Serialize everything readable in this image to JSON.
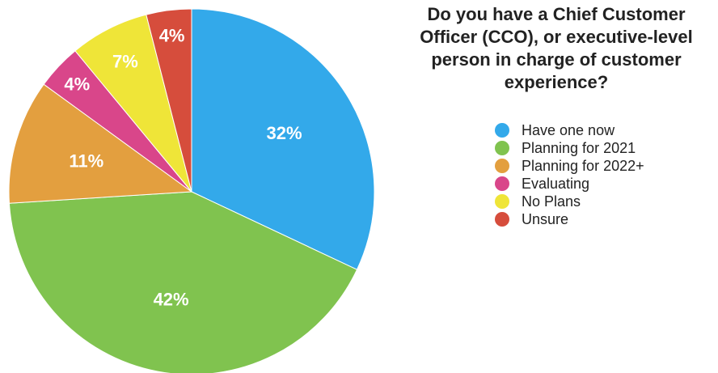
{
  "chart_data": {
    "type": "pie",
    "title": "Do you have a Chief Customer Officer (CCO), or executive-level person in charge of customer experience?",
    "categories": [
      "Have one now",
      "Planning for 2021",
      "Planning for 2022+",
      "Evaluating",
      "No Plans",
      "Unsure"
    ],
    "values": [
      32,
      42,
      11,
      4,
      7,
      4
    ],
    "value_labels": [
      "32%",
      "42%",
      "11%",
      "4%",
      "7%",
      "4%"
    ],
    "colors": [
      "#33A9EA",
      "#80C34F",
      "#E39F3F",
      "#D9468A",
      "#EFE538",
      "#D64D3C"
    ],
    "start_angle": "top",
    "direction": "clockwise",
    "legend_position": "right"
  }
}
